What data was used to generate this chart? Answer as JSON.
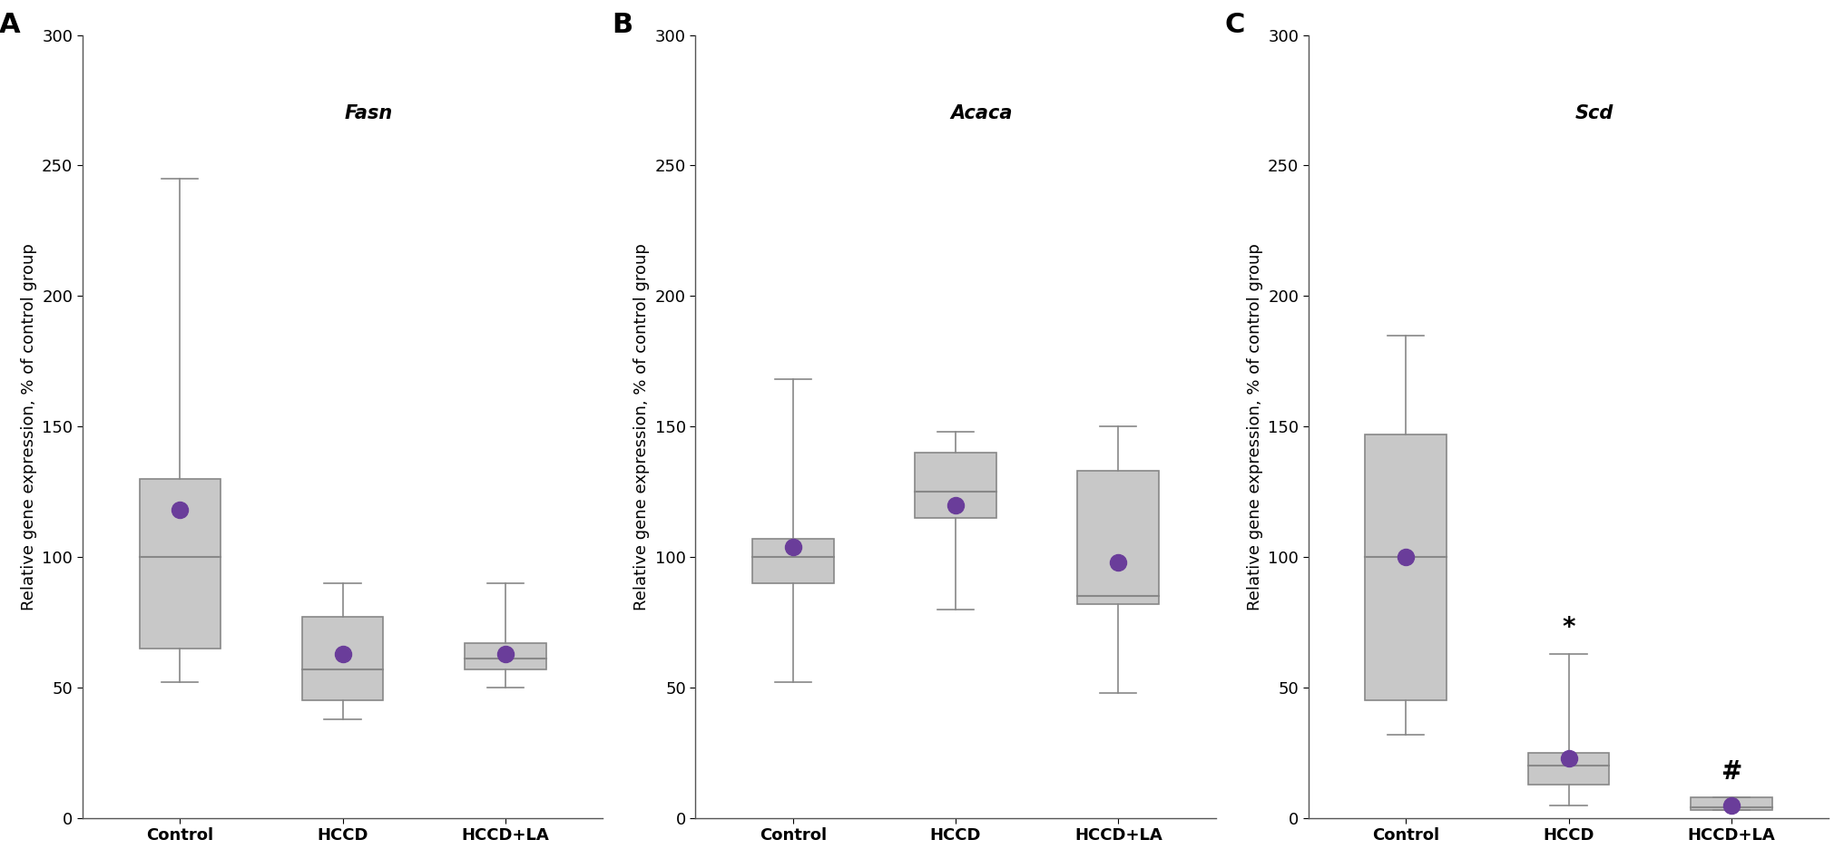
{
  "panels": [
    {
      "label": "A",
      "gene": "Fasn",
      "groups": [
        "Control",
        "HCCD",
        "HCCD+LA"
      ],
      "box_data": [
        {
          "whisker_low": 52,
          "q1": 65,
          "median": 100,
          "q3": 130,
          "whisker_high": 245,
          "mean": 118
        },
        {
          "whisker_low": 38,
          "q1": 45,
          "median": 57,
          "q3": 77,
          "whisker_high": 90,
          "mean": 63
        },
        {
          "whisker_low": 50,
          "q1": 57,
          "median": 61,
          "q3": 67,
          "whisker_high": 90,
          "mean": 63
        }
      ],
      "annotations": [
        "",
        "",
        ""
      ]
    },
    {
      "label": "B",
      "gene": "Acaca",
      "groups": [
        "Control",
        "HCCD",
        "HCCD+LA"
      ],
      "box_data": [
        {
          "whisker_low": 52,
          "q1": 90,
          "median": 100,
          "q3": 107,
          "whisker_high": 168,
          "mean": 104
        },
        {
          "whisker_low": 80,
          "q1": 115,
          "median": 125,
          "q3": 140,
          "whisker_high": 148,
          "mean": 120
        },
        {
          "whisker_low": 48,
          "q1": 82,
          "median": 85,
          "q3": 133,
          "whisker_high": 150,
          "mean": 98
        }
      ],
      "annotations": [
        "",
        "",
        ""
      ]
    },
    {
      "label": "C",
      "gene": "Scd",
      "groups": [
        "Control",
        "HCCD",
        "HCCD+LA"
      ],
      "box_data": [
        {
          "whisker_low": 32,
          "q1": 45,
          "median": 100,
          "q3": 147,
          "whisker_high": 185,
          "mean": 100
        },
        {
          "whisker_low": 5,
          "q1": 13,
          "median": 20,
          "q3": 25,
          "whisker_high": 63,
          "mean": 23
        },
        {
          "whisker_low": 3,
          "q1": 3,
          "median": 4,
          "q3": 8,
          "whisker_high": 8,
          "mean": 5
        }
      ],
      "annotations": [
        "",
        "*",
        "#"
      ]
    }
  ],
  "ylabel": "Relative gene expression, % of control group",
  "ylim": [
    0,
    300
  ],
  "yticks": [
    0,
    50,
    100,
    150,
    200,
    250,
    300
  ],
  "box_color": "#c8c8c8",
  "box_edge_color": "#888888",
  "median_color": "#888888",
  "mean_color": "#6a3d9a",
  "whisker_color": "#888888",
  "cap_color": "#888888",
  "background_color": "#ffffff",
  "box_width": 0.5,
  "annotation_fontsize": 20,
  "gene_fontsize": 15,
  "tick_fontsize": 13,
  "ylabel_fontsize": 13,
  "label_fontsize": 22
}
